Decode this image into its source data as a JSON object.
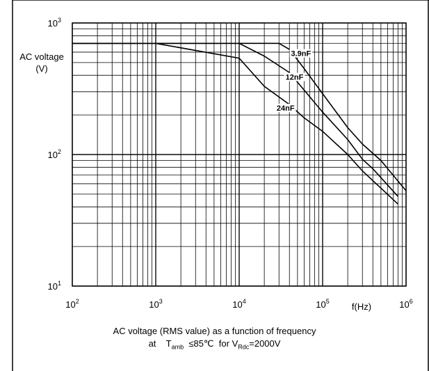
{
  "chart_data": {
    "type": "line",
    "x_scale": "log",
    "y_scale": "log",
    "xlim": [
      100,
      1000000
    ],
    "ylim": [
      10,
      1000
    ],
    "grid": true,
    "xlabel": "f(Hz)",
    "ylabel_line1": "AC voltage",
    "ylabel_line2": "(V)",
    "x_ticks": [
      {
        "value": 100,
        "base": "10",
        "exp": "2"
      },
      {
        "value": 1000,
        "base": "10",
        "exp": "3"
      },
      {
        "value": 10000,
        "base": "10",
        "exp": "4"
      },
      {
        "value": 100000,
        "base": "10",
        "exp": "5"
      },
      {
        "value": 1000000,
        "base": "10",
        "exp": "6"
      }
    ],
    "y_ticks": [
      {
        "value": 10,
        "base": "10",
        "exp": "1"
      },
      {
        "value": 100,
        "base": "10",
        "exp": "2"
      },
      {
        "value": 1000,
        "base": "10",
        "exp": "3"
      }
    ],
    "series": [
      {
        "name": "3.9nF",
        "label_at": [
          55000,
          560
        ],
        "points": [
          [
            100,
            700
          ],
          [
            30000,
            700
          ],
          [
            40000,
            630
          ],
          [
            60000,
            450
          ],
          [
            100000,
            290
          ],
          [
            200000,
            160
          ],
          [
            300000,
            120
          ],
          [
            500000,
            90
          ],
          [
            1000000,
            53
          ]
        ]
      },
      {
        "name": "12nF",
        "label_at": [
          46000,
          370
        ],
        "points": [
          [
            100,
            700
          ],
          [
            10000,
            700
          ],
          [
            20000,
            560
          ],
          [
            40000,
            420
          ],
          [
            100000,
            210
          ],
          [
            200000,
            130
          ],
          [
            300000,
            92
          ],
          [
            400000,
            78
          ],
          [
            800000,
            48
          ]
        ]
      },
      {
        "name": "24nF",
        "label_at": [
          36000,
          215
        ],
        "points": [
          [
            100,
            700
          ],
          [
            1000,
            700
          ],
          [
            10000,
            540
          ],
          [
            20000,
            330
          ],
          [
            40000,
            240
          ],
          [
            60000,
            190
          ],
          [
            100000,
            150
          ],
          [
            200000,
            100
          ],
          [
            300000,
            75
          ],
          [
            800000,
            42
          ]
        ]
      }
    ]
  },
  "caption": {
    "line1": "AC voltage (RMS value) as a function of frequency",
    "at": "at",
    "t": "T",
    "t_sub": "amb",
    "cond1": "≤85℃",
    "for": "for",
    "v": "V",
    "v_sub": "Rdc",
    "cond2": "=2000V"
  }
}
